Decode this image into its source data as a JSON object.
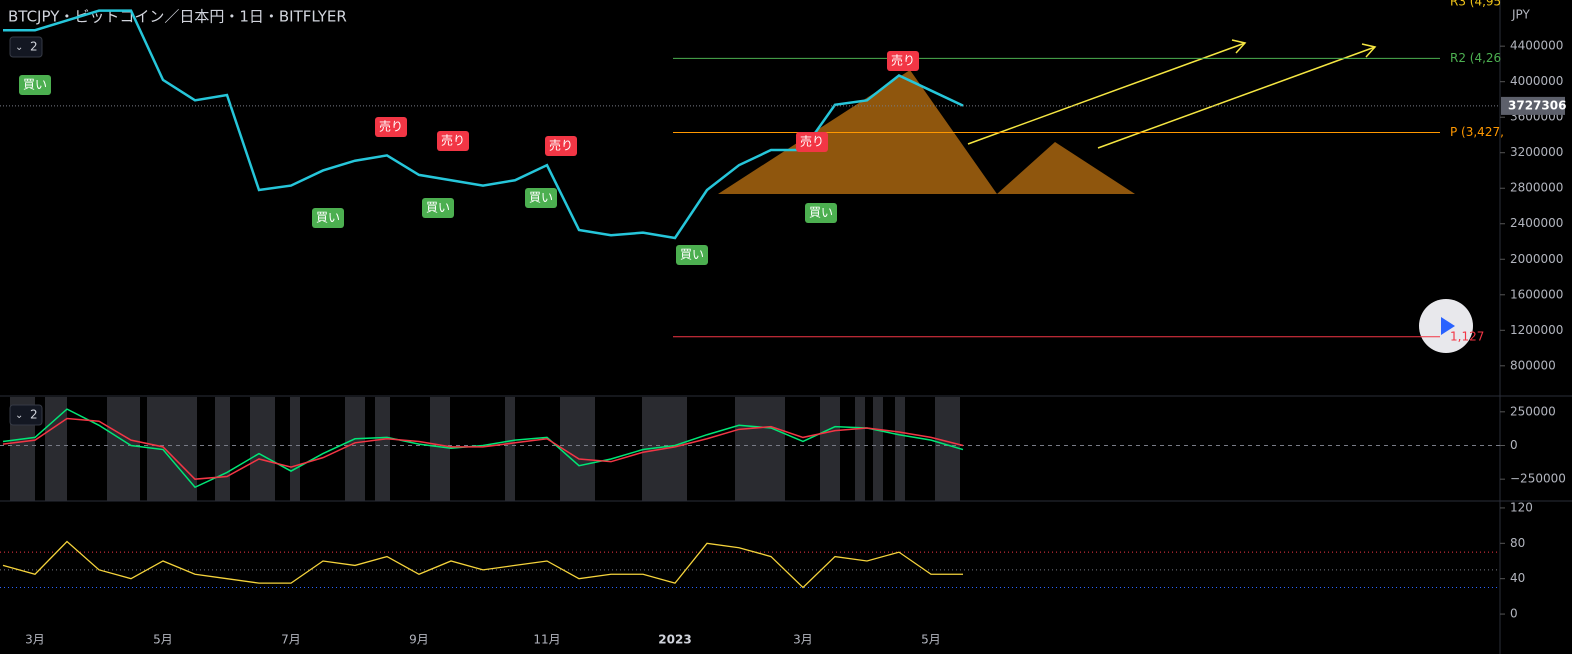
{
  "chart_data": [
    {
      "type": "line",
      "title": "BTCJPY・ビットコイン／日本円・1日・BITFLYER",
      "pane_label": "2",
      "y_unit": "JPY",
      "values": [
        4580000,
        4580000,
        4690000,
        4800000,
        4800000,
        4020000,
        3790000,
        3850000,
        2780000,
        2830000,
        3000000,
        3110000,
        3170000,
        2950000,
        2890000,
        2830000,
        2890000,
        3060000,
        2330000,
        2270000,
        2300000,
        2240000,
        2780000,
        3060000,
        3230000,
        3230000,
        3740000,
        3790000,
        4070000,
        3900000,
        3730000
      ],
      "color": "#26c6da",
      "ylim": [
        460000,
        4920000
      ],
      "yticks": [
        800000,
        1200000,
        1600000,
        2000000,
        2400000,
        2800000,
        3200000,
        3600000,
        4000000,
        4400000
      ],
      "last_price": 3727306,
      "levels": [
        {
          "label": "R3 (4,95",
          "value": 4950000,
          "color": "#f0c419"
        },
        {
          "label": "R2 (4,26",
          "value": 4262000,
          "color": "#4caf50"
        },
        {
          "label": "P (3,427,",
          "value": 3427000,
          "color": "#ff9800"
        },
        {
          "label": "1,127",
          "value": 1127000,
          "color": "#f23645"
        }
      ],
      "annotations": [
        "買い",
        "売り",
        "売り",
        "売り",
        "売り",
        "売り",
        "買い",
        "買い",
        "買い",
        "買い",
        "買い"
      ]
    },
    {
      "type": "line",
      "pane_label": "2",
      "series": [
        {
          "color": "#00e676",
          "values": [
            30000,
            60000,
            270000,
            150000,
            0,
            -30000,
            -310000,
            -200000,
            -60000,
            -190000,
            -60000,
            50000,
            60000,
            10000,
            -20000,
            0,
            40000,
            60000,
            -150000,
            -100000,
            -30000,
            0,
            80000,
            150000,
            130000,
            30000,
            140000,
            130000,
            80000,
            40000,
            -30000
          ]
        },
        {
          "color": "#f23645",
          "values": [
            10000,
            40000,
            200000,
            180000,
            40000,
            -10000,
            -250000,
            -230000,
            -100000,
            -160000,
            -90000,
            20000,
            50000,
            30000,
            -10000,
            -10000,
            20000,
            50000,
            -100000,
            -120000,
            -50000,
            -10000,
            50000,
            120000,
            140000,
            60000,
            110000,
            130000,
            100000,
            60000,
            0
          ]
        }
      ],
      "ylim": [
        -412000,
        360000
      ],
      "yticks": [
        {
          "value": -250000,
          "label": "−250000"
        },
        0,
        250000
      ]
    },
    {
      "type": "line",
      "categories": [
        null,
        "3月",
        null,
        null,
        null,
        "5月",
        null,
        null,
        null,
        "7月",
        null,
        null,
        null,
        "9月",
        null,
        null,
        null,
        "11月",
        null,
        null,
        null,
        "2023",
        null,
        null,
        null,
        "3月",
        null,
        null,
        null,
        "5月",
        null
      ],
      "values": [
        55,
        45,
        82,
        50,
        40,
        60,
        45,
        40,
        35,
        35,
        60,
        55,
        65,
        45,
        60,
        50,
        55,
        60,
        40,
        45,
        45,
        35,
        80,
        75,
        65,
        30,
        65,
        60,
        70,
        45,
        45
      ],
      "color": "#f5d33b",
      "ylim": [
        -13.5,
        126.7
      ],
      "yticks": [
        0,
        40,
        80,
        120
      ],
      "levels": [
        {
          "value": 70,
          "color": "#f23645"
        },
        {
          "value": 50,
          "color": "#787b86"
        },
        {
          "value": 30,
          "color": "#2962ff"
        }
      ]
    }
  ]
}
